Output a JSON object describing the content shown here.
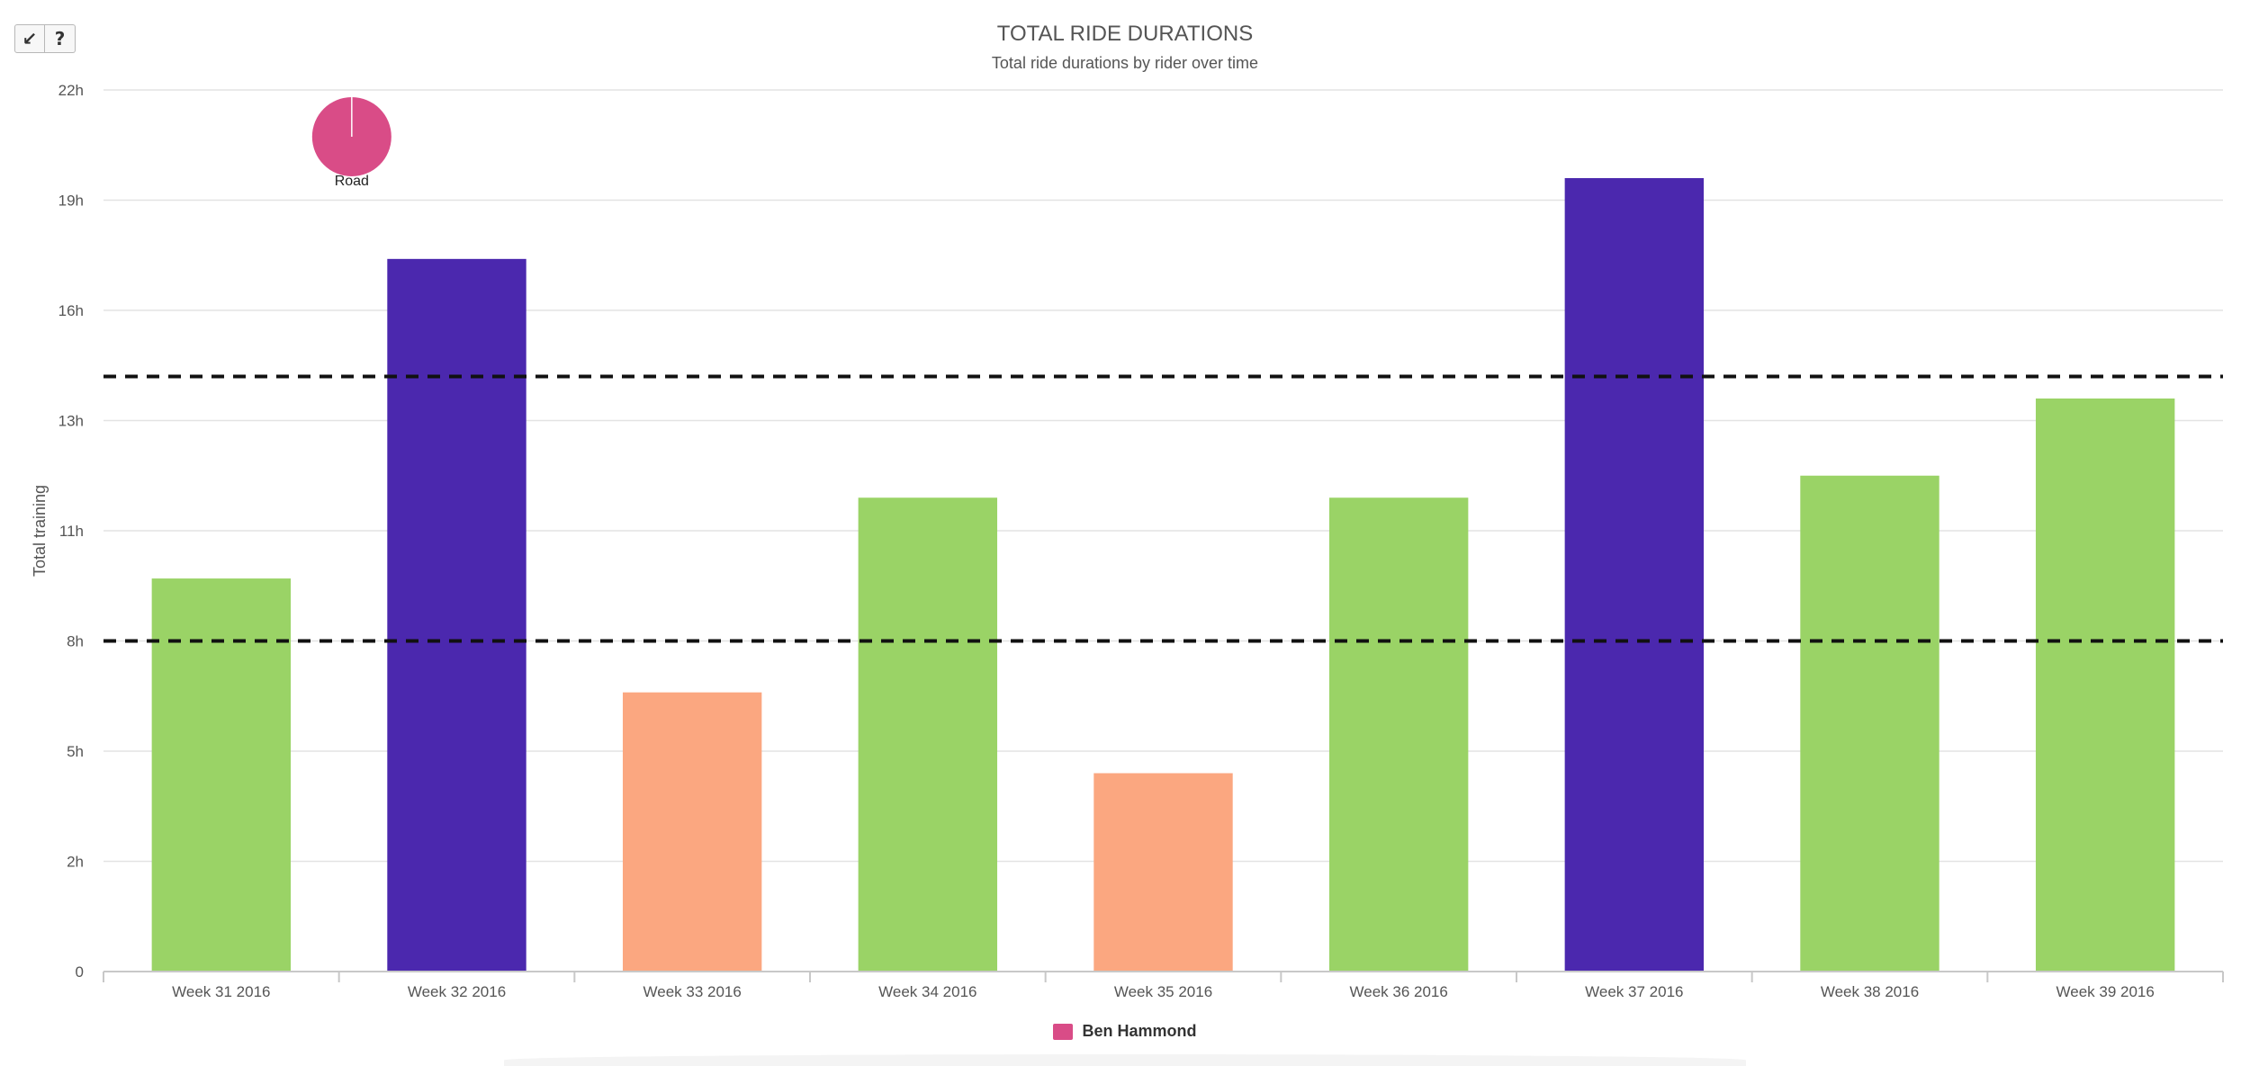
{
  "toolbar": {
    "collapse_label": "↙",
    "help_label": "?"
  },
  "chart_data": {
    "type": "bar",
    "title": "TOTAL RIDE DURATIONS",
    "subtitle": "Total ride durations by rider over time",
    "ylabel": "Total training",
    "xlabel": "",
    "ylim": [
      0,
      24
    ],
    "yticks": [
      0,
      3,
      6,
      9,
      12,
      15,
      18,
      21,
      24
    ],
    "ytick_labels": [
      "0",
      "2h",
      "5h",
      "8h",
      "11h",
      "13h",
      "16h",
      "19h",
      "22h"
    ],
    "categories": [
      "Week 31 2016",
      "Week 32 2016",
      "Week 33 2016",
      "Week 34 2016",
      "Week 35 2016",
      "Week 36 2016",
      "Week 37 2016",
      "Week 38 2016",
      "Week 39 2016"
    ],
    "values": [
      10.7,
      19.4,
      7.6,
      12.9,
      5.4,
      12.9,
      21.6,
      13.5,
      15.6
    ],
    "bar_colors": [
      "#9ad366",
      "#4b28ae",
      "#fba780",
      "#9ad366",
      "#fba780",
      "#9ad366",
      "#4b28ae",
      "#9ad366",
      "#9ad366"
    ],
    "reference_lines": [
      9,
      16.2
    ],
    "grid": true,
    "legend": {
      "position": "bottom-center",
      "entries": [
        {
          "name": "Ben Hammond",
          "color": "#d94c87"
        }
      ]
    },
    "pie_annotation": {
      "label": "Road",
      "color": "#d94c87",
      "value_fraction": 1.0
    }
  }
}
